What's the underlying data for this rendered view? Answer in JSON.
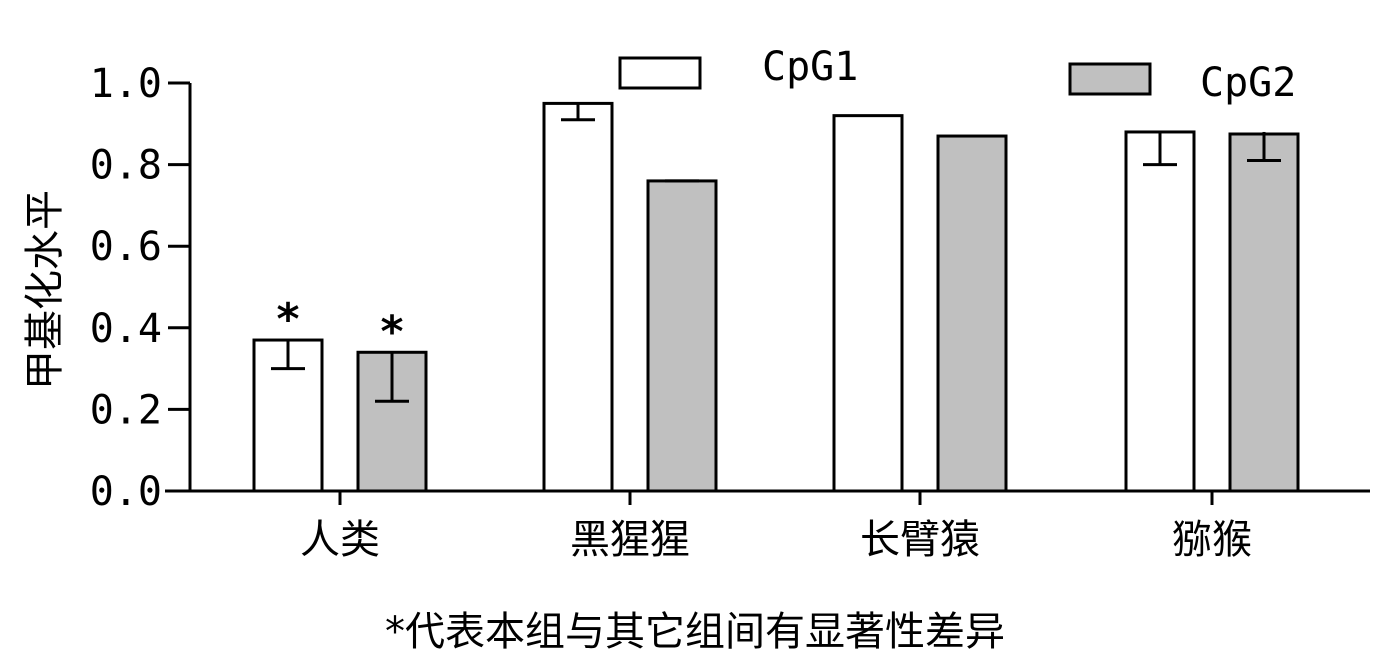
{
  "chart_data": {
    "type": "bar",
    "ylabel": "甲基化水平",
    "xlabel": "",
    "ylim": [
      0,
      1.0
    ],
    "yticks": [
      "0.0",
      "0.2",
      "0.4",
      "0.6",
      "0.8",
      "1.0"
    ],
    "categories": [
      "人类",
      "黑猩猩",
      "长臂猿",
      "猕猴"
    ],
    "series": [
      {
        "name": "CpG1",
        "color": "#ffffff",
        "values": [
          0.37,
          0.95,
          0.92,
          0.88
        ],
        "error_low": [
          0.3,
          0.91,
          null,
          0.8
        ],
        "error_high": [
          0.37,
          0.95,
          null,
          0.88
        ]
      },
      {
        "name": "CpG2",
        "color": "#c0c0c0",
        "values": [
          0.34,
          0.76,
          0.87,
          0.875
        ],
        "error_low": [
          0.22,
          0.76,
          null,
          0.81
        ],
        "error_high": [
          0.34,
          0.76,
          null,
          0.88
        ]
      }
    ],
    "significance": [
      {
        "category": 0,
        "series": 0,
        "mark": "*"
      },
      {
        "category": 0,
        "series": 1,
        "mark": "*"
      }
    ],
    "legend_position": "top",
    "grid": false
  },
  "footnote": "*代表本组与其它组间有显著性差异"
}
